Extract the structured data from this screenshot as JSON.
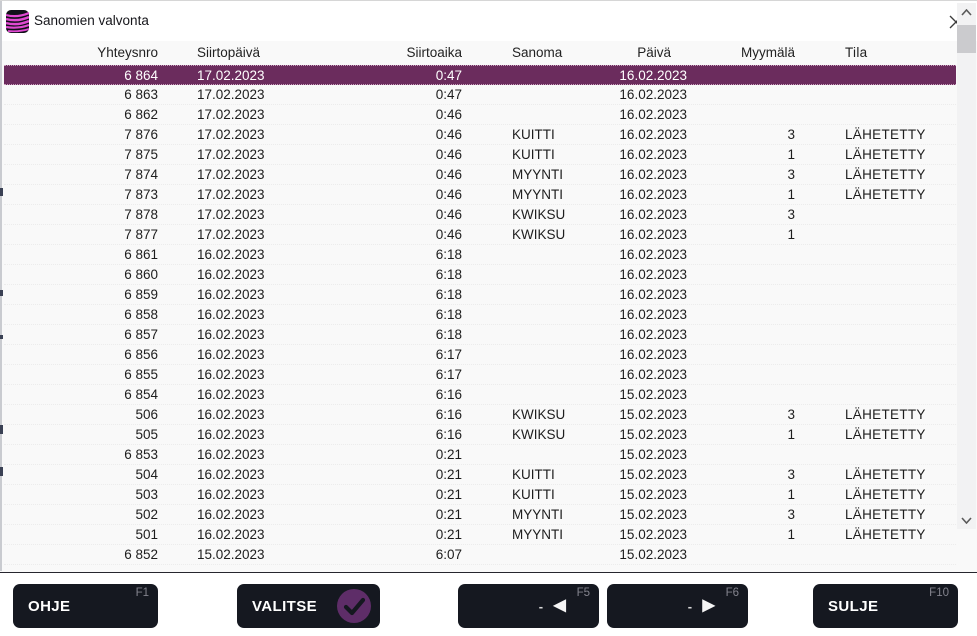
{
  "window": {
    "title": "Sanomien valvonta",
    "icon": "app-waves-icon"
  },
  "colors": {
    "selected_row_bg": "#6b2c5d",
    "button_bg": "#151820",
    "check_circle": "#5e2d68",
    "icon_pink": "#e049d1",
    "scrollbar_thumb": "#cbcbce"
  },
  "table": {
    "columns": [
      {
        "key": "yhteysnro",
        "label": "Yhteysnro"
      },
      {
        "key": "siirtopaiva",
        "label": "Siirtopäivä"
      },
      {
        "key": "siirtoaika",
        "label": "Siirtoaika"
      },
      {
        "key": "sanoma",
        "label": "Sanoma"
      },
      {
        "key": "paiva",
        "label": "Päivä"
      },
      {
        "key": "myymala",
        "label": "Myymälä"
      },
      {
        "key": "tila",
        "label": "Tila"
      }
    ],
    "selected_row_index": 0,
    "rows": [
      [
        "6 864",
        "17.02.2023",
        "0:47",
        "",
        "16.02.2023",
        "",
        ""
      ],
      [
        "6 863",
        "17.02.2023",
        "0:47",
        "",
        "16.02.2023",
        "",
        ""
      ],
      [
        "6 862",
        "17.02.2023",
        "0:46",
        "",
        "16.02.2023",
        "",
        ""
      ],
      [
        "7 876",
        "17.02.2023",
        "0:46",
        "KUITTI",
        "16.02.2023",
        "3",
        "LÄHETETTY"
      ],
      [
        "7 875",
        "17.02.2023",
        "0:46",
        "KUITTI",
        "16.02.2023",
        "1",
        "LÄHETETTY"
      ],
      [
        "7 874",
        "17.02.2023",
        "0:46",
        "MYYNTI",
        "16.02.2023",
        "3",
        "LÄHETETTY"
      ],
      [
        "7 873",
        "17.02.2023",
        "0:46",
        "MYYNTI",
        "16.02.2023",
        "1",
        "LÄHETETTY"
      ],
      [
        "7 878",
        "17.02.2023",
        "0:46",
        "KWIKSU",
        "16.02.2023",
        "3",
        ""
      ],
      [
        "7 877",
        "17.02.2023",
        "0:46",
        "KWIKSU",
        "16.02.2023",
        "1",
        ""
      ],
      [
        "6 861",
        "16.02.2023",
        "6:18",
        "",
        "16.02.2023",
        "",
        ""
      ],
      [
        "6 860",
        "16.02.2023",
        "6:18",
        "",
        "16.02.2023",
        "",
        ""
      ],
      [
        "6 859",
        "16.02.2023",
        "6:18",
        "",
        "16.02.2023",
        "",
        ""
      ],
      [
        "6 858",
        "16.02.2023",
        "6:18",
        "",
        "16.02.2023",
        "",
        ""
      ],
      [
        "6 857",
        "16.02.2023",
        "6:18",
        "",
        "16.02.2023",
        "",
        ""
      ],
      [
        "6 856",
        "16.02.2023",
        "6:17",
        "",
        "16.02.2023",
        "",
        ""
      ],
      [
        "6 855",
        "16.02.2023",
        "6:17",
        "",
        "16.02.2023",
        "",
        ""
      ],
      [
        "6 854",
        "16.02.2023",
        "6:16",
        "",
        "15.02.2023",
        "",
        ""
      ],
      [
        "506",
        "16.02.2023",
        "6:16",
        "KWIKSU",
        "15.02.2023",
        "3",
        "LÄHETETTY"
      ],
      [
        "505",
        "16.02.2023",
        "6:16",
        "KWIKSU",
        "15.02.2023",
        "1",
        "LÄHETETTY"
      ],
      [
        "6 853",
        "16.02.2023",
        "0:21",
        "",
        "15.02.2023",
        "",
        ""
      ],
      [
        "504",
        "16.02.2023",
        "0:21",
        "KUITTI",
        "15.02.2023",
        "3",
        "LÄHETETTY"
      ],
      [
        "503",
        "16.02.2023",
        "0:21",
        "KUITTI",
        "15.02.2023",
        "1",
        "LÄHETETTY"
      ],
      [
        "502",
        "16.02.2023",
        "0:21",
        "MYYNTI",
        "15.02.2023",
        "3",
        "LÄHETETTY"
      ],
      [
        "501",
        "16.02.2023",
        "0:21",
        "MYYNTI",
        "15.02.2023",
        "1",
        "LÄHETETTY"
      ],
      [
        "6 852",
        "15.02.2023",
        "6:07",
        "",
        "15.02.2023",
        "",
        ""
      ]
    ]
  },
  "toolbar": {
    "ohje": {
      "label": "OHJE",
      "fkey": "F1"
    },
    "valitse": {
      "label": "VALITSE",
      "icon": "check-circle-icon"
    },
    "prev": {
      "label": "-",
      "arrow": "◀",
      "fkey": "F5"
    },
    "next": {
      "label": "-",
      "arrow": "▶",
      "fkey": "F6"
    },
    "sulje": {
      "label": "SULJE",
      "fkey": "F10"
    }
  }
}
